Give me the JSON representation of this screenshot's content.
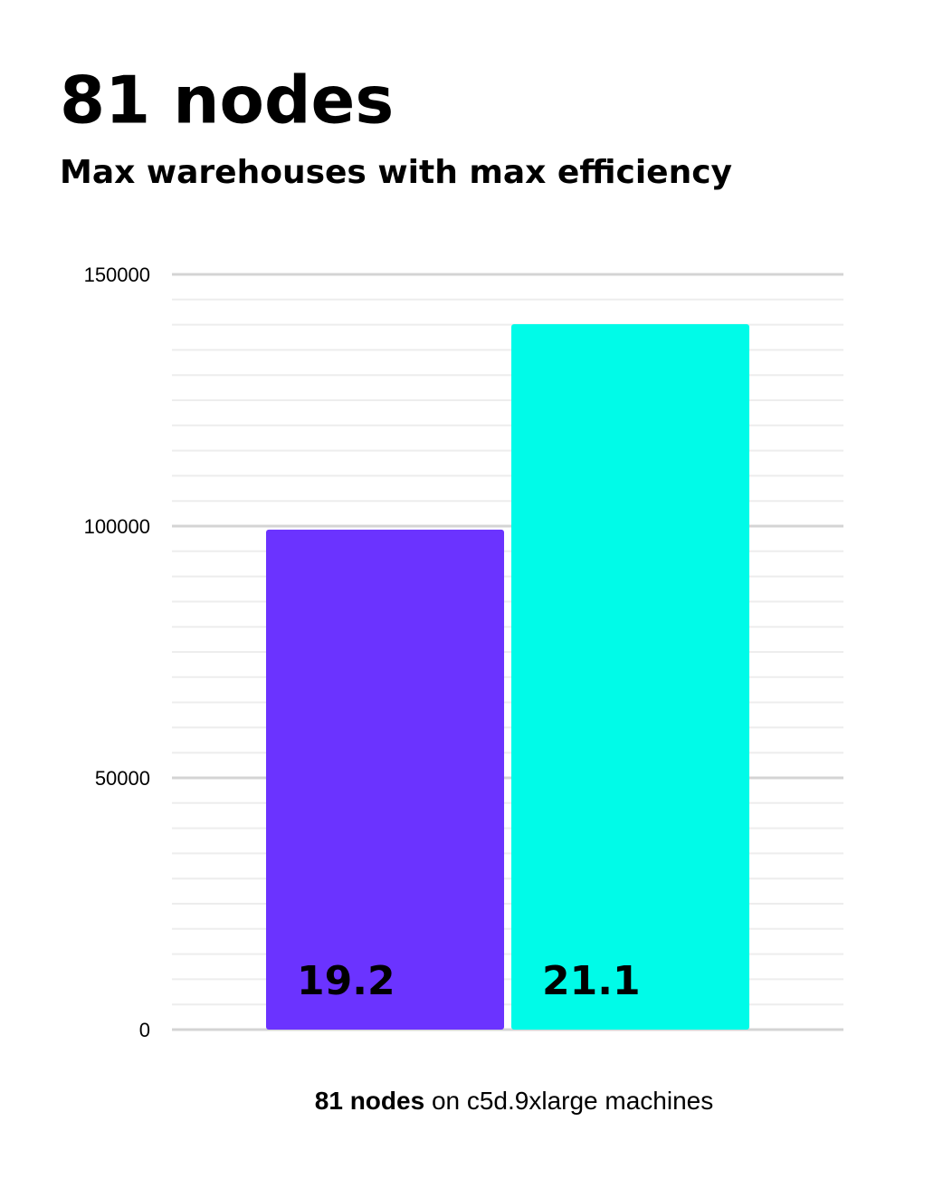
{
  "chart_data": {
    "type": "bar",
    "title": "81 nodes",
    "subtitle": "Max warehouses with max efficiency",
    "categories": [
      null,
      null
    ],
    "values": [
      99300,
      140100
    ],
    "colors": [
      "#6b33ff",
      "#00fbe8"
    ],
    "bar_labels": [
      "19.2",
      "21.1"
    ],
    "bar_label_colors": [
      "#ffffff",
      "#6b33ff"
    ],
    "xlabel": [
      "81 nodes",
      "on c5d.9xlarge machines"
    ],
    "ylim": [
      0,
      150000
    ],
    "yticks": [
      0,
      50000,
      100000,
      150000
    ],
    "minor_yticks": [
      5000,
      10000,
      15000,
      20000,
      25000,
      30000,
      35000,
      40000,
      45000,
      55000,
      60000,
      65000,
      70000,
      75000,
      80000,
      85000,
      90000,
      95000,
      105000,
      110000,
      115000,
      120000,
      125000,
      130000,
      135000,
      140000,
      145000
    ],
    "grid": true
  }
}
